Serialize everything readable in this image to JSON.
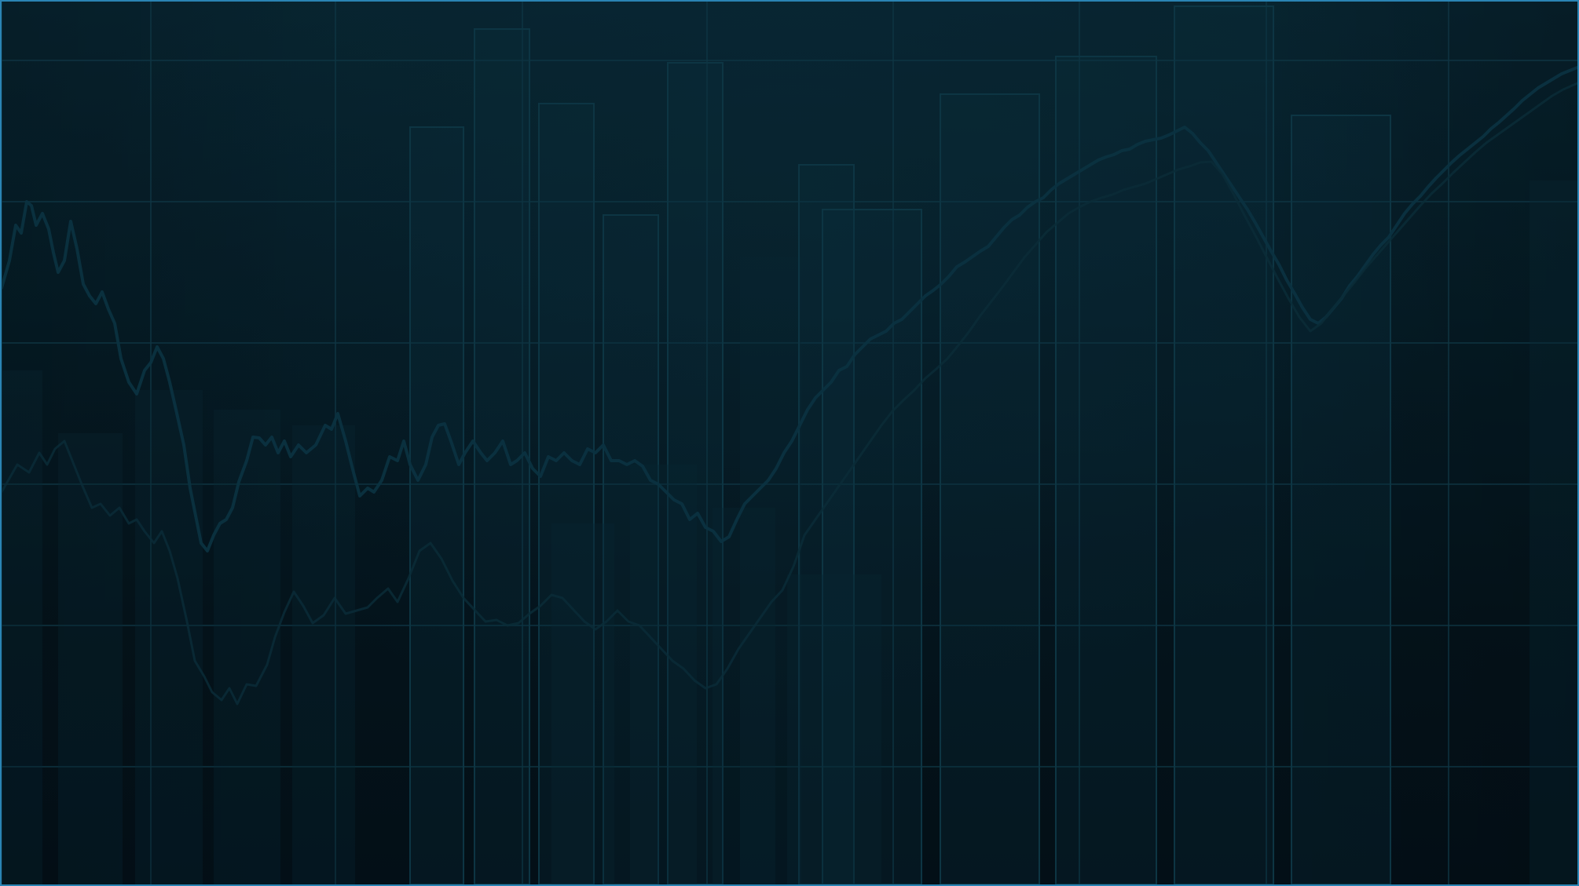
{
  "theme": {
    "background": "#020a10",
    "border": "#2a84b4",
    "grid": "#0f3644",
    "line": "#0b3240"
  },
  "decor": {
    "type": "abstract-market-background",
    "icons": [
      "line-chart-icon",
      "bar-chart-icon"
    ]
  }
}
